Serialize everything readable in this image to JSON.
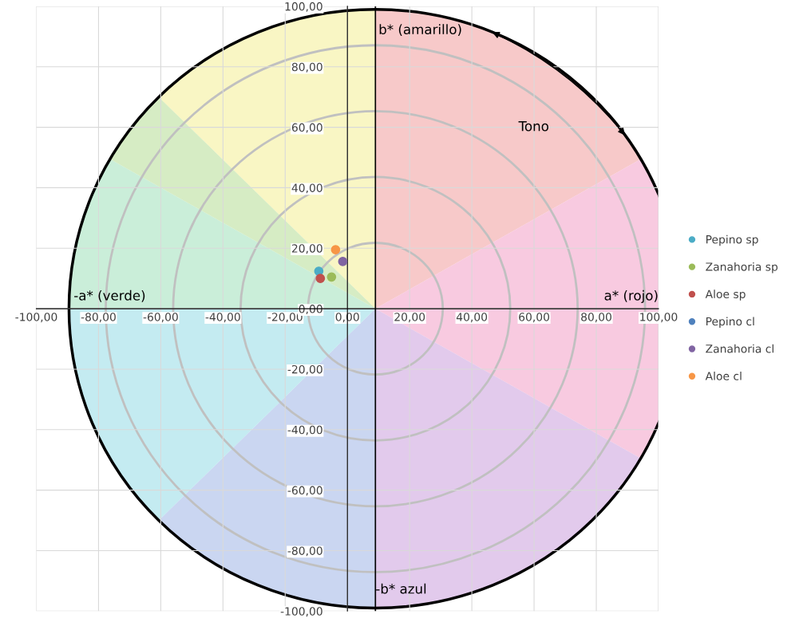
{
  "chart_data": {
    "type": "scatter",
    "series": [
      {
        "name": "Pepino sp",
        "color": "#4bacc6",
        "x": [
          -9.2
        ],
        "values": [
          12.4
        ]
      },
      {
        "name": "Zanahoria sp",
        "color": "#9bbb59",
        "x": [
          -5.1
        ],
        "values": [
          10.5
        ]
      },
      {
        "name": "Aloe sp",
        "color": "#c0504d",
        "x": [
          -8.7
        ],
        "values": [
          10.0
        ]
      },
      {
        "name": "Pepino cl",
        "color": "#4f81bd",
        "x": [
          null
        ],
        "values": [
          null
        ]
      },
      {
        "name": "Zanahoria cl",
        "color": "#8064a2",
        "x": [
          -1.5
        ],
        "values": [
          15.6
        ]
      },
      {
        "name": "Aloe cl",
        "color": "#f79646",
        "x": [
          -3.8
        ],
        "values": [
          19.5
        ]
      }
    ],
    "xlim": [
      -100,
      100
    ],
    "ylim": [
      -100,
      100
    ],
    "xticks": [
      {
        "value": -100,
        "label": "-100,00"
      },
      {
        "value": -80,
        "label": "-80,00"
      },
      {
        "value": -60,
        "label": "-60,00"
      },
      {
        "value": -40,
        "label": "-40,00"
      },
      {
        "value": -20,
        "label": "-20,00"
      },
      {
        "value": 0,
        "label": "0,00"
      },
      {
        "value": 20,
        "label": "20,00"
      },
      {
        "value": 40,
        "label": "40,00"
      },
      {
        "value": 60,
        "label": "60,00"
      },
      {
        "value": 80,
        "label": "80,00"
      },
      {
        "value": 100,
        "label": "100,00"
      }
    ],
    "yticks": [
      {
        "value": -100,
        "label": "-100,00"
      },
      {
        "value": -80,
        "label": "-80,00"
      },
      {
        "value": -60,
        "label": "-60,00"
      },
      {
        "value": -40,
        "label": "-40,00"
      },
      {
        "value": -20,
        "label": "-20,00"
      },
      {
        "value": 0,
        "label": "0,00"
      },
      {
        "value": 20,
        "label": "20,00"
      },
      {
        "value": 40,
        "label": "40,00"
      },
      {
        "value": 60,
        "label": "60,00"
      },
      {
        "value": 80,
        "label": "80,00"
      },
      {
        "value": 100,
        "label": "100,00"
      }
    ],
    "annotations": [
      "b* (amarillo)",
      "-a* (verde)",
      "a* (rojo)",
      "-b* azul",
      "Tono"
    ],
    "ref_lines": [
      {
        "axis": "x",
        "value": 9,
        "color": "#000000"
      }
    ],
    "grid": true,
    "legend": "right",
    "marker": "circle"
  }
}
